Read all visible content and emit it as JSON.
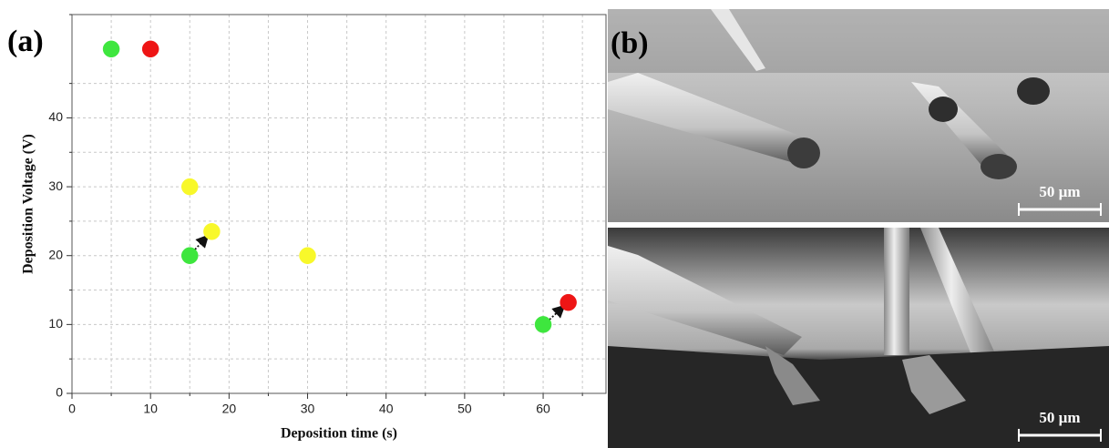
{
  "chart_data": {
    "type": "scatter",
    "panel_label": "(a)",
    "xlabel": "Deposition time (s)",
    "ylabel": "Deposition Voltage (V)",
    "x": [
      5,
      10,
      15,
      15,
      17.8,
      30,
      60,
      63.2
    ],
    "values": [
      50,
      50,
      30,
      20,
      23.5,
      20,
      10,
      13.2
    ],
    "colors": [
      "#3ee63e",
      "#ee1515",
      "#f8f82a",
      "#3ee63e",
      "#f8f82a",
      "#f8f82a",
      "#3ee63e",
      "#ee1515"
    ],
    "xlim": [
      0,
      68
    ],
    "ylim": [
      0,
      55
    ],
    "xticks": [
      0,
      10,
      20,
      30,
      40,
      50,
      60
    ],
    "yticks": [
      0,
      10,
      20,
      30,
      40
    ],
    "minor_xticks": [
      5,
      15,
      25,
      35,
      45,
      55,
      65
    ],
    "minor_yticks": [
      5,
      15,
      25,
      35,
      45,
      55
    ],
    "grid": true
  },
  "images": {
    "panel_label": "(b)",
    "top_scale_bar": "50 µm",
    "bottom_scale_bar": "50 µm"
  }
}
